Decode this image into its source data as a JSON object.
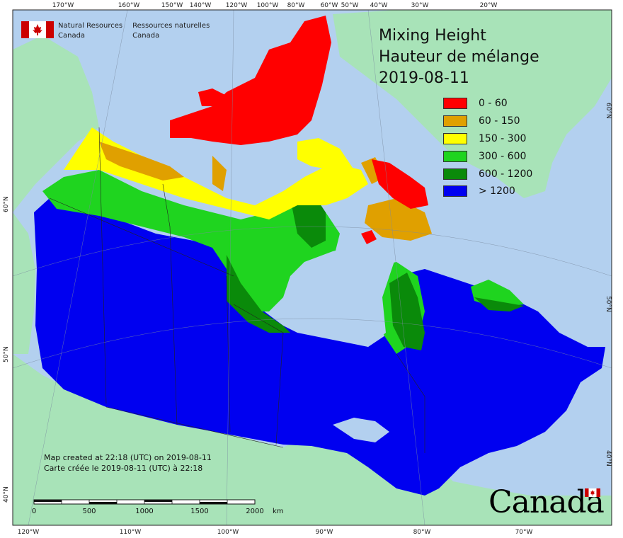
{
  "map": {
    "title_en": "Mixing Height",
    "title_fr": "Hauteur de mélange",
    "date": "2019-08-11",
    "agency_en_line1": "Natural Resources",
    "agency_en_line2": "Canada",
    "agency_fr_line1": "Ressources naturelles",
    "agency_fr_line2": "Canada",
    "wordmark": "Canada",
    "note_en": "Map created at 22:18 (UTC) on 2019-08-11",
    "note_fr": "Carte créée le 2019-08-11 (UTC) à 22:18"
  },
  "legend": [
    {
      "label": "0 - 60",
      "color": "#ff0000"
    },
    {
      "label": "60 - 150",
      "color": "#e0a000"
    },
    {
      "label": "150 - 300",
      "color": "#ffff00"
    },
    {
      "label": "300 - 600",
      "color": "#1fd41f"
    },
    {
      "label": "600 - 1200",
      "color": "#0a8a0a"
    },
    {
      "label": "> 1200",
      "color": "#0000f0"
    }
  ],
  "ticks_top": [
    "170°W",
    "160°W",
    "150°W",
    "140°W",
    "120°W",
    "100°W",
    "80°W",
    "60°W",
    "50°W",
    "40°W",
    "30°W",
    "20°W"
  ],
  "ticks_bottom": [
    "120°W",
    "110°W",
    "100°W",
    "90°W",
    "80°W",
    "70°W"
  ],
  "ticks_left": [
    "60°N",
    "50°N",
    "40°N"
  ],
  "ticks_right": [
    "60°N",
    "50°N",
    "40°N"
  ],
  "scale": {
    "labels": [
      "0",
      "500",
      "1000",
      "1500",
      "2000"
    ],
    "unit": "km"
  },
  "colors": {
    "ocean": "#b3d0ef",
    "land_outside": "#a8e3b8",
    "border": "#222222"
  }
}
